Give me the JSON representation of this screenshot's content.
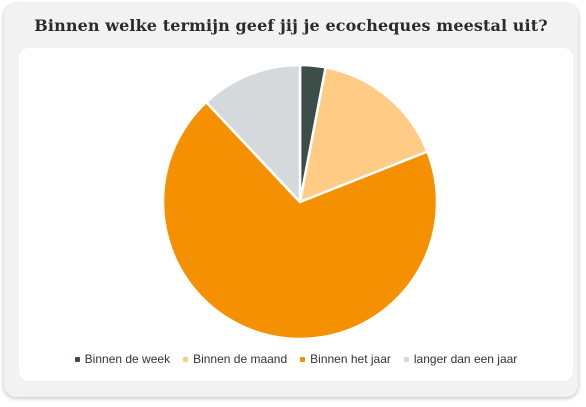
{
  "chart_data": {
    "type": "pie",
    "title": "Binnen welke termijn geef jij je ecocheques meestal uit?",
    "categories": [
      "Binnen de week",
      "Binnen de maand",
      "Binnen het jaar",
      "langer dan een jaar"
    ],
    "values": [
      3,
      16,
      69,
      12
    ],
    "colors": [
      "#3d4d4a",
      "#ffcb85",
      "#f59100",
      "#d6d9db"
    ],
    "start_angle_deg": 0,
    "direction": "clockwise",
    "legend": "bottom",
    "data_labels": false
  }
}
